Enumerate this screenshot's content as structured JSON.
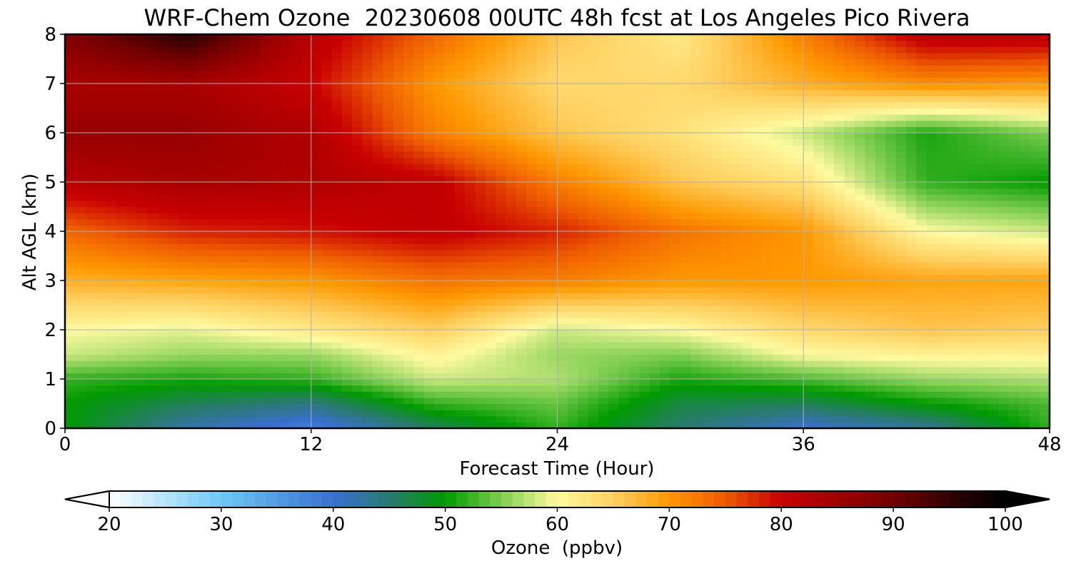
{
  "chart_data": {
    "type": "heatmap",
    "title": "WRF-Chem Ozone  20230608 00UTC 48h fcst at Los Angeles Pico Rivera",
    "xlabel": "Forecast Time (Hour)",
    "ylabel": "Alt AGL (km)",
    "xlim": [
      0,
      48
    ],
    "ylim": [
      0,
      8
    ],
    "xticks": [
      0,
      12,
      24,
      36,
      48
    ],
    "yticks": [
      0,
      1,
      2,
      3,
      4,
      5,
      6,
      7,
      8
    ],
    "grid": true,
    "colorbar": {
      "label": "Ozone  (ppbv)",
      "orientation": "horizontal",
      "placement": "bottom",
      "min": 20,
      "max": 100,
      "ticks": [
        20,
        30,
        40,
        50,
        60,
        70,
        80,
        90,
        100
      ],
      "extend": "both",
      "colorstops": [
        {
          "value": 20,
          "color": "#ffffff"
        },
        {
          "value": 30,
          "color": "#6ec8f4"
        },
        {
          "value": 40,
          "color": "#3a6fd0"
        },
        {
          "value": 45,
          "color": "#2a7a70"
        },
        {
          "value": 50,
          "color": "#009a00"
        },
        {
          "value": 55,
          "color": "#7fce50"
        },
        {
          "value": 60,
          "color": "#fffaa0"
        },
        {
          "value": 65,
          "color": "#ffd060"
        },
        {
          "value": 70,
          "color": "#ff9800"
        },
        {
          "value": 75,
          "color": "#ee5a00"
        },
        {
          "value": 80,
          "color": "#c80000"
        },
        {
          "value": 85,
          "color": "#a00000"
        },
        {
          "value": 90,
          "color": "#700000"
        },
        {
          "value": 95,
          "color": "#300000"
        },
        {
          "value": 100,
          "color": "#000000"
        }
      ]
    },
    "grid_x": [
      0,
      6,
      12,
      18,
      24,
      30,
      36,
      42,
      48
    ],
    "grid_y": [
      0,
      0.5,
      1,
      1.5,
      2,
      3,
      4,
      5,
      6,
      7,
      8
    ],
    "values": [
      [
        50,
        42,
        38,
        46,
        52,
        45,
        40,
        43,
        52
      ],
      [
        50,
        46,
        44,
        52,
        54,
        47,
        46,
        50,
        53
      ],
      [
        52,
        51,
        52,
        58,
        57,
        51,
        53,
        56,
        57
      ],
      [
        58,
        56,
        56,
        61,
        56,
        55,
        60,
        61,
        61
      ],
      [
        60,
        59,
        62,
        65,
        58,
        60,
        64,
        66,
        65
      ],
      [
        68,
        69,
        70,
        73,
        72,
        70,
        70,
        69,
        69
      ],
      [
        74,
        78,
        79,
        81,
        78,
        73,
        70,
        60,
        58
      ],
      [
        82,
        84,
        83,
        81,
        72,
        66,
        63,
        52,
        50
      ],
      [
        86,
        86,
        83,
        72,
        66,
        63,
        58,
        51,
        55
      ],
      [
        84,
        84,
        80,
        70,
        64,
        64,
        68,
        71,
        70
      ],
      [
        88,
        96,
        82,
        74,
        66,
        62,
        72,
        82,
        82
      ]
    ]
  }
}
